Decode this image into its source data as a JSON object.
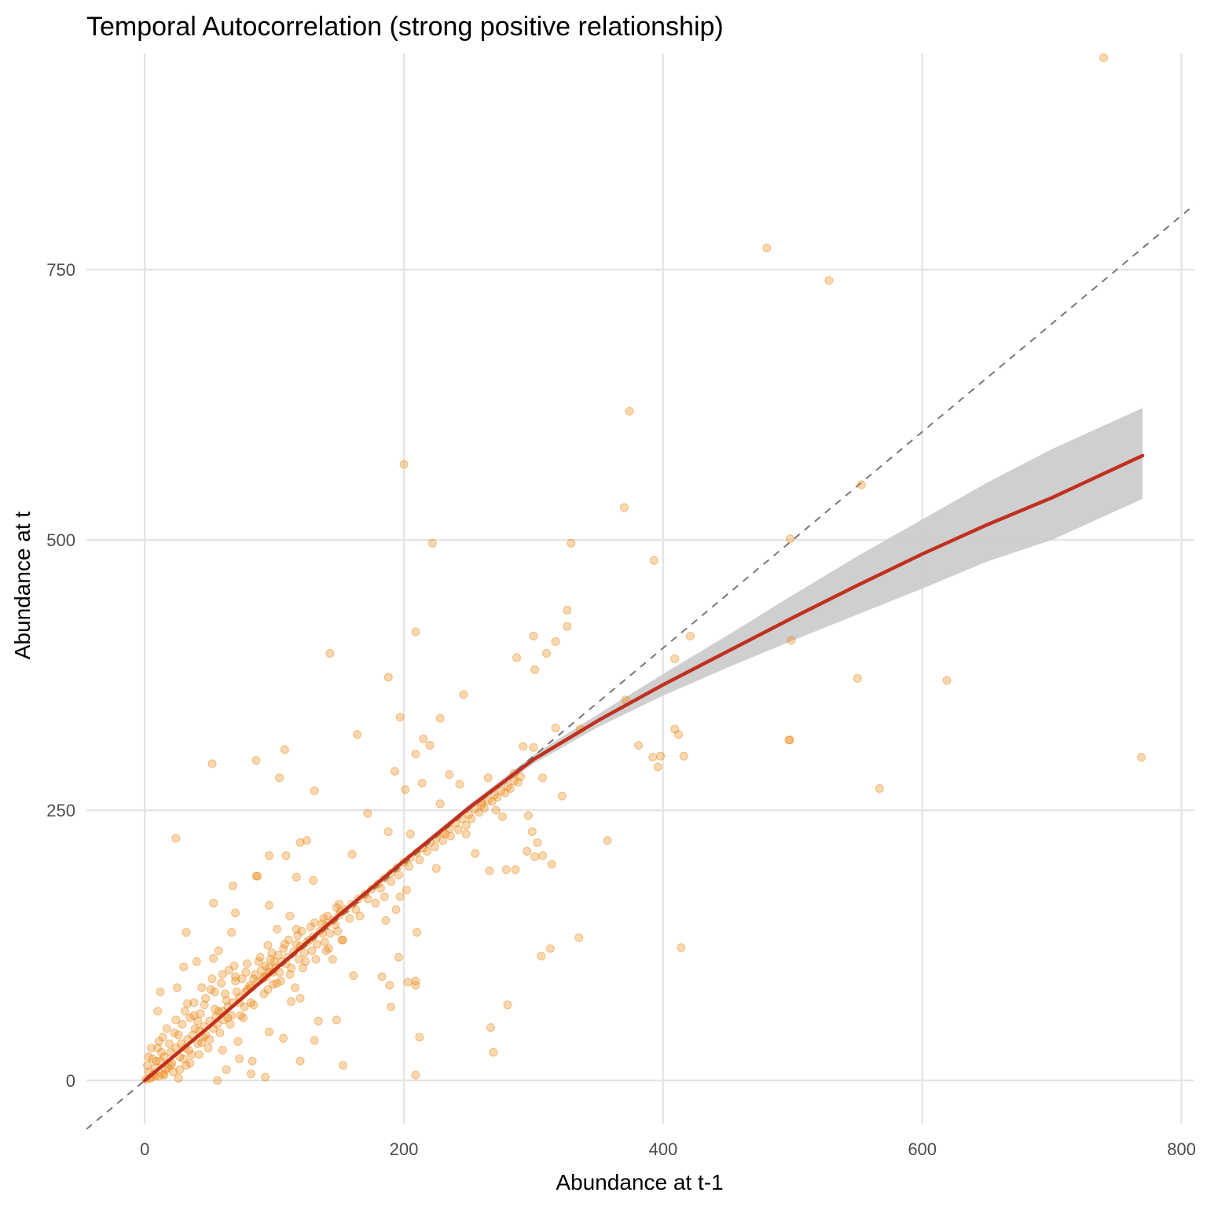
{
  "chart_data": {
    "type": "scatter",
    "title": "Temporal Autocorrelation (strong positive relationship)",
    "xlabel": "Abundance at t-1",
    "ylabel": "Abundance at t",
    "xlim": [
      -45,
      810
    ],
    "ylim": [
      -40,
      950
    ],
    "x_ticks": [
      0,
      200,
      400,
      600,
      800
    ],
    "y_ticks": [
      0,
      250,
      500,
      750
    ],
    "x_tick_labels": [
      "0",
      "200",
      "400",
      "600",
      "800"
    ],
    "y_tick_labels": [
      "0",
      "250",
      "500",
      "750"
    ],
    "grid": true,
    "legend": "none",
    "colors": {
      "points": "#e8820c",
      "smooth_line": "#c0301f",
      "confidence_band": "#cccccc",
      "reference_line": "#777777"
    },
    "reference_line": {
      "slope": 1,
      "intercept": 0,
      "style": "dashed"
    },
    "smooth": {
      "x": [
        0,
        50,
        100,
        150,
        200,
        250,
        300,
        350,
        400,
        450,
        500,
        550,
        600,
        650,
        700,
        770
      ],
      "y": [
        0,
        50,
        102,
        153,
        203,
        252,
        297,
        333,
        366,
        397,
        428,
        458,
        487,
        514,
        539,
        578
      ],
      "lower": [
        0,
        49,
        100,
        151,
        201,
        249,
        293,
        327,
        356,
        382,
        407,
        431,
        455,
        480,
        500,
        538
      ],
      "upper": [
        0,
        51,
        104,
        155,
        205,
        255,
        301,
        339,
        376,
        412,
        449,
        485,
        519,
        553,
        584,
        622
      ]
    },
    "points": [
      [
        740,
        946
      ],
      [
        480,
        770
      ],
      [
        528,
        740
      ],
      [
        374,
        619
      ],
      [
        200,
        570
      ],
      [
        370,
        530
      ],
      [
        553,
        551
      ],
      [
        222,
        497
      ],
      [
        329,
        497
      ],
      [
        498,
        501
      ],
      [
        393,
        481
      ],
      [
        326,
        435
      ],
      [
        326,
        420
      ],
      [
        209,
        415
      ],
      [
        300,
        411
      ],
      [
        317,
        406
      ],
      [
        499,
        407
      ],
      [
        421,
        411
      ],
      [
        143,
        395
      ],
      [
        287,
        391
      ],
      [
        310,
        395
      ],
      [
        409,
        390
      ],
      [
        301,
        380
      ],
      [
        188,
        373
      ],
      [
        550,
        372
      ],
      [
        619,
        370
      ],
      [
        246,
        357
      ],
      [
        371,
        352
      ],
      [
        197,
        336
      ],
      [
        228,
        335
      ],
      [
        317,
        326
      ],
      [
        336,
        325
      ],
      [
        409,
        325
      ],
      [
        164,
        320
      ],
      [
        412,
        320
      ],
      [
        215,
        316
      ],
      [
        220,
        310
      ],
      [
        381,
        310
      ],
      [
        292,
        309
      ],
      [
        300,
        308
      ],
      [
        108,
        306
      ],
      [
        209,
        302
      ],
      [
        392,
        299
      ],
      [
        398,
        300
      ],
      [
        416,
        300
      ],
      [
        497,
        315
      ],
      [
        498,
        315
      ],
      [
        769,
        299
      ],
      [
        52,
        293
      ],
      [
        86,
        296
      ],
      [
        104,
        280
      ],
      [
        193,
        286
      ],
      [
        235,
        283
      ],
      [
        265,
        280
      ],
      [
        285,
        284
      ],
      [
        307,
        280
      ],
      [
        396,
        290
      ],
      [
        214,
        275
      ],
      [
        243,
        274
      ],
      [
        567,
        270
      ],
      [
        131,
        268
      ],
      [
        201,
        269
      ],
      [
        322,
        263
      ],
      [
        228,
        256
      ],
      [
        260,
        257
      ],
      [
        271,
        250
      ],
      [
        276,
        244
      ],
      [
        296,
        245
      ],
      [
        172,
        247
      ],
      [
        24,
        224
      ],
      [
        120,
        220
      ],
      [
        125,
        222
      ],
      [
        188,
        230
      ],
      [
        205,
        228
      ],
      [
        232,
        228
      ],
      [
        248,
        228
      ],
      [
        299,
        230
      ],
      [
        357,
        222
      ],
      [
        303,
        220
      ],
      [
        96,
        208
      ],
      [
        109,
        208
      ],
      [
        160,
        209
      ],
      [
        255,
        210
      ],
      [
        295,
        212
      ],
      [
        301,
        207
      ],
      [
        307,
        208
      ],
      [
        225,
        196
      ],
      [
        314,
        200
      ],
      [
        266,
        194
      ],
      [
        279,
        195
      ],
      [
        286,
        195
      ],
      [
        86,
        189
      ],
      [
        87,
        189
      ],
      [
        117,
        188
      ],
      [
        130,
        185
      ],
      [
        68,
        180
      ],
      [
        202,
        176
      ],
      [
        185,
        170
      ],
      [
        197,
        170
      ],
      [
        96,
        162
      ],
      [
        53,
        164
      ],
      [
        70,
        155
      ],
      [
        112,
        152
      ],
      [
        163,
        158
      ],
      [
        194,
        158
      ],
      [
        150,
        163
      ],
      [
        186,
        148
      ],
      [
        102,
        140
      ],
      [
        137,
        145
      ],
      [
        32,
        137
      ],
      [
        67,
        137
      ],
      [
        117,
        140
      ],
      [
        153,
        130
      ],
      [
        210,
        137
      ],
      [
        335,
        132
      ],
      [
        313,
        122
      ],
      [
        306,
        115
      ],
      [
        414,
        123
      ],
      [
        95,
        125
      ],
      [
        57,
        120
      ],
      [
        140,
        120
      ],
      [
        124,
        110
      ],
      [
        196,
        114
      ],
      [
        53,
        113
      ],
      [
        40,
        110
      ],
      [
        145,
        112
      ],
      [
        30,
        105
      ],
      [
        96,
        104
      ],
      [
        161,
        97
      ],
      [
        183,
        96
      ],
      [
        203,
        91
      ],
      [
        209,
        92
      ],
      [
        209,
        88
      ],
      [
        189,
        88
      ],
      [
        25,
        86
      ],
      [
        70,
        92
      ],
      [
        99,
        89
      ],
      [
        116,
        86
      ],
      [
        12,
        82
      ],
      [
        54,
        82
      ],
      [
        120,
        76
      ],
      [
        113,
        73
      ],
      [
        280,
        70
      ],
      [
        190,
        68
      ],
      [
        84,
        70
      ],
      [
        33,
        71
      ],
      [
        10,
        64
      ],
      [
        76,
        58
      ],
      [
        134,
        55
      ],
      [
        148,
        56
      ],
      [
        41,
        55
      ],
      [
        267,
        49
      ],
      [
        96,
        45
      ],
      [
        107,
        39
      ],
      [
        212,
        40
      ],
      [
        131,
        37
      ],
      [
        72,
        36
      ],
      [
        44,
        35
      ],
      [
        60,
        28
      ],
      [
        269,
        26
      ],
      [
        73,
        20
      ],
      [
        120,
        18
      ],
      [
        83,
        18
      ],
      [
        153,
        14
      ],
      [
        32,
        14
      ],
      [
        63,
        10
      ],
      [
        82,
        6
      ],
      [
        93,
        3
      ],
      [
        209,
        5
      ],
      [
        56,
        0
      ],
      [
        26,
        2
      ],
      [
        15,
        5
      ],
      [
        5,
        3
      ],
      [
        1,
        1
      ],
      [
        3,
        8
      ],
      [
        8,
        12
      ],
      [
        12,
        18
      ],
      [
        15,
        22
      ],
      [
        20,
        26
      ],
      [
        24,
        30
      ],
      [
        28,
        34
      ],
      [
        33,
        38
      ],
      [
        37,
        42
      ],
      [
        42,
        46
      ],
      [
        46,
        50
      ],
      [
        50,
        55
      ],
      [
        55,
        59
      ],
      [
        60,
        64
      ],
      [
        64,
        68
      ],
      [
        68,
        72
      ],
      [
        73,
        77
      ],
      [
        78,
        82
      ],
      [
        82,
        86
      ],
      [
        87,
        91
      ],
      [
        92,
        96
      ],
      [
        96,
        100
      ],
      [
        101,
        105
      ],
      [
        106,
        110
      ],
      [
        110,
        114
      ],
      [
        115,
        119
      ],
      [
        120,
        124
      ],
      [
        125,
        128
      ],
      [
        130,
        133
      ],
      [
        135,
        138
      ],
      [
        140,
        143
      ],
      [
        145,
        148
      ],
      [
        150,
        153
      ],
      [
        155,
        158
      ],
      [
        160,
        163
      ],
      [
        165,
        168
      ],
      [
        170,
        172
      ],
      [
        175,
        177
      ],
      [
        180,
        182
      ],
      [
        185,
        187
      ],
      [
        190,
        192
      ],
      [
        195,
        197
      ],
      [
        200,
        202
      ],
      [
        205,
        206
      ],
      [
        210,
        211
      ],
      [
        215,
        215
      ],
      [
        220,
        220
      ],
      [
        225,
        224
      ],
      [
        230,
        229
      ],
      [
        235,
        233
      ],
      [
        240,
        238
      ],
      [
        245,
        242
      ],
      [
        250,
        246
      ],
      [
        255,
        251
      ],
      [
        260,
        255
      ],
      [
        265,
        259
      ],
      [
        270,
        264
      ],
      [
        275,
        268
      ],
      [
        280,
        272
      ],
      [
        285,
        277
      ],
      [
        290,
        281
      ],
      [
        6,
        20
      ],
      [
        10,
        30
      ],
      [
        14,
        40
      ],
      [
        18,
        12
      ],
      [
        22,
        8
      ],
      [
        26,
        42
      ],
      [
        30,
        20
      ],
      [
        34,
        28
      ],
      [
        38,
        60
      ],
      [
        42,
        24
      ],
      [
        46,
        70
      ],
      [
        50,
        38
      ],
      [
        54,
        66
      ],
      [
        58,
        44
      ],
      [
        62,
        80
      ],
      [
        66,
        52
      ],
      [
        70,
        96
      ],
      [
        74,
        60
      ],
      [
        78,
        100
      ],
      [
        82,
        72
      ],
      [
        88,
        110
      ],
      [
        92,
        80
      ],
      [
        98,
        118
      ],
      [
        102,
        90
      ],
      [
        108,
        126
      ],
      [
        112,
        98
      ],
      [
        118,
        134
      ],
      [
        122,
        104
      ],
      [
        128,
        142
      ],
      [
        132,
        112
      ],
      [
        138,
        150
      ],
      [
        142,
        122
      ],
      [
        148,
        160
      ],
      [
        152,
        130
      ],
      [
        158,
        150
      ],
      [
        166,
        152
      ],
      [
        172,
        168
      ],
      [
        178,
        164
      ],
      [
        182,
        178
      ],
      [
        190,
        184
      ],
      [
        196,
        190
      ],
      [
        204,
        198
      ],
      [
        212,
        204
      ],
      [
        218,
        212
      ],
      [
        224,
        216
      ],
      [
        230,
        222
      ],
      [
        236,
        226
      ],
      [
        242,
        232
      ],
      [
        248,
        236
      ],
      [
        252,
        242
      ],
      [
        258,
        248
      ],
      [
        262,
        252
      ],
      [
        268,
        258
      ],
      [
        272,
        262
      ],
      [
        278,
        266
      ],
      [
        282,
        270
      ],
      [
        288,
        276
      ],
      [
        2,
        14
      ],
      [
        4,
        2
      ],
      [
        7,
        6
      ],
      [
        9,
        18
      ],
      [
        11,
        4
      ],
      [
        13,
        26
      ],
      [
        16,
        10
      ],
      [
        19,
        34
      ],
      [
        21,
        16
      ],
      [
        23,
        44
      ],
      [
        27,
        22
      ],
      [
        29,
        52
      ],
      [
        31,
        30
      ],
      [
        35,
        58
      ],
      [
        36,
        24
      ],
      [
        39,
        48
      ],
      [
        43,
        62
      ],
      [
        45,
        40
      ],
      [
        47,
        76
      ],
      [
        49,
        30
      ],
      [
        51,
        84
      ],
      [
        53,
        48
      ],
      [
        57,
        64
      ],
      [
        59,
        90
      ],
      [
        61,
        56
      ],
      [
        63,
        74
      ],
      [
        65,
        102
      ],
      [
        67,
        60
      ],
      [
        71,
        82
      ],
      [
        75,
        94
      ],
      [
        77,
        68
      ],
      [
        79,
        108
      ],
      [
        81,
        88
      ],
      [
        85,
        98
      ],
      [
        89,
        114
      ],
      [
        91,
        94
      ],
      [
        93,
        106
      ],
      [
        95,
        84
      ],
      [
        97,
        112
      ],
      [
        99,
        100
      ],
      [
        103,
        116
      ],
      [
        105,
        92
      ],
      [
        107,
        122
      ],
      [
        109,
        108
      ],
      [
        111,
        130
      ],
      [
        113,
        104
      ],
      [
        117,
        126
      ],
      [
        119,
        112
      ],
      [
        121,
        138
      ],
      [
        123,
        118
      ],
      [
        127,
        130
      ],
      [
        129,
        120
      ],
      [
        131,
        146
      ],
      [
        133,
        126
      ],
      [
        137,
        136
      ],
      [
        139,
        128
      ],
      [
        141,
        152
      ],
      [
        143,
        136
      ],
      [
        147,
        144
      ],
      [
        149,
        138
      ],
      [
        151,
        156
      ],
      [
        3,
        22
      ],
      [
        5,
        30
      ],
      [
        8,
        4
      ],
      [
        11,
        36
      ],
      [
        14,
        6
      ],
      [
        17,
        48
      ],
      [
        20,
        14
      ],
      [
        24,
        56
      ],
      [
        27,
        10
      ],
      [
        31,
        64
      ],
      [
        35,
        16
      ],
      [
        38,
        72
      ],
      [
        41,
        34
      ],
      [
        44,
        86
      ],
      [
        47,
        42
      ],
      [
        52,
        94
      ],
      [
        56,
        52
      ],
      [
        60,
        98
      ],
      [
        64,
        58
      ],
      [
        69,
        106
      ],
      [
        73,
        72
      ],
      [
        79,
        84
      ],
      [
        84,
        94
      ],
      [
        90,
        102
      ],
      [
        94,
        96
      ],
      [
        100,
        110
      ],
      [
        104,
        100
      ]
    ]
  }
}
